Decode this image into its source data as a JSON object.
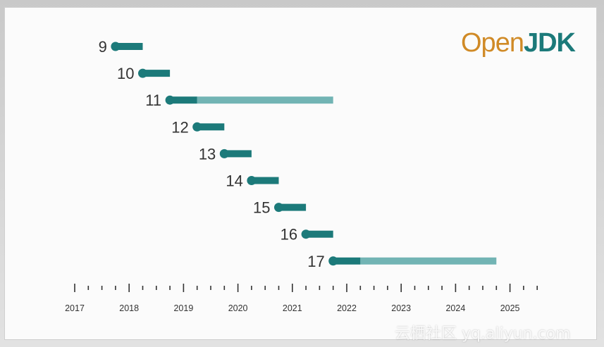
{
  "logo": {
    "open_text": "Open",
    "jdk_text": "JDK"
  },
  "watermark": "云栖社区 yq.aliyun.com",
  "colors": {
    "dark_teal": "#1c7a7a",
    "light_teal": "#72b4b4",
    "axis": "#333333",
    "label": "#333333"
  },
  "chart_data": {
    "type": "timeline",
    "title": "",
    "xlabel": "",
    "ylabel": "",
    "xlim": [
      2017.0,
      2025.5
    ],
    "x_ticks": [
      "2017",
      "2018",
      "2019",
      "2020",
      "2021",
      "2022",
      "2023",
      "2024",
      "2025"
    ],
    "minor_ticks_per_year": 4,
    "releases": [
      {
        "version": "9",
        "start": 2017.75,
        "end": 2018.25
      },
      {
        "version": "10",
        "start": 2018.25,
        "end": 2018.75
      },
      {
        "version": "11",
        "start": 2018.75,
        "end": 2019.25,
        "extended_end": 2021.75
      },
      {
        "version": "12",
        "start": 2019.25,
        "end": 2019.75
      },
      {
        "version": "13",
        "start": 2019.75,
        "end": 2020.25
      },
      {
        "version": "14",
        "start": 2020.25,
        "end": 2020.75
      },
      {
        "version": "15",
        "start": 2020.75,
        "end": 2021.25
      },
      {
        "version": "16",
        "start": 2021.25,
        "end": 2021.75
      },
      {
        "version": "17",
        "start": 2021.75,
        "end": 2022.25,
        "extended_end": 2024.75
      }
    ]
  }
}
